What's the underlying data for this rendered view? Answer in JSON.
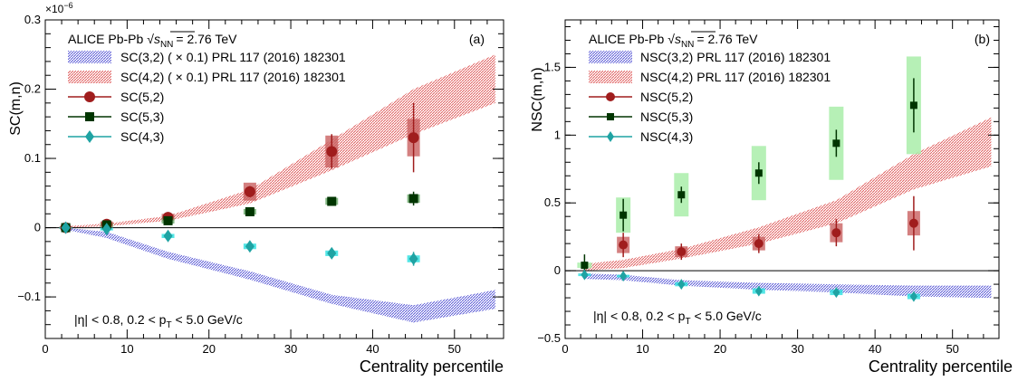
{
  "chart_data": [
    {
      "type": "scatter",
      "panel_label": "(a)",
      "header": "ALICE Pb-Pb",
      "energy_label": "= 2.76 TeV",
      "ylabel": "SC(m,n)",
      "y_multiplier": "×10",
      "y_multiplier_exp": "−6",
      "xlabel": "Centrality percentile",
      "cut_text": "|η| < 0.8, 0.2 < p",
      "cut_text_end": " < 5.0 GeV/c",
      "xlim": [
        0,
        56
      ],
      "ylim": [
        -0.16,
        0.3
      ],
      "xticks": [
        0,
        10,
        20,
        30,
        40,
        50
      ],
      "yticks": [
        -0.1,
        0,
        0.1,
        0.2,
        0.3
      ],
      "ytick_labels": [
        "−0.1",
        "0",
        "0.1",
        "0.2",
        "0.3"
      ],
      "bands": [
        {
          "name": "SC(3,2) ( × 0.1) PRL 117 (2016) 182301",
          "color": "#5b5bd6",
          "x": [
            2.5,
            7.5,
            15,
            25,
            35,
            45,
            55
          ],
          "low": [
            -0.003,
            -0.015,
            -0.045,
            -0.075,
            -0.11,
            -0.137,
            -0.117
          ],
          "high": [
            0.0,
            -0.006,
            -0.035,
            -0.063,
            -0.097,
            -0.112,
            -0.09
          ]
        },
        {
          "name": "SC(4,2) ( × 0.1) PRL 117 (2016) 182301",
          "color": "#e06060",
          "x": [
            2.5,
            7.5,
            15,
            25,
            35,
            45,
            55
          ],
          "low": [
            0.0,
            0.002,
            0.01,
            0.035,
            0.083,
            0.135,
            0.18
          ],
          "high": [
            0.002,
            0.006,
            0.017,
            0.055,
            0.127,
            0.2,
            0.25
          ]
        }
      ],
      "series": [
        {
          "name": "SC(5,2)",
          "marker": "circle",
          "color": "#a01d1d",
          "sys_color": "#c96060",
          "x": [
            2.5,
            7.5,
            15,
            25,
            35,
            45
          ],
          "y": [
            0.0,
            0.005,
            0.015,
            0.052,
            0.11,
            0.13
          ],
          "stat": [
            0.002,
            0.003,
            0.004,
            0.008,
            0.025,
            0.05
          ],
          "sys": [
            0.002,
            0.004,
            0.005,
            0.013,
            0.023,
            0.027
          ]
        },
        {
          "name": "SC(5,3)",
          "marker": "square",
          "color": "#003500",
          "sys_color": "#6aaa6a",
          "x": [
            2.5,
            7.5,
            15,
            25,
            35,
            45
          ],
          "y": [
            0.0,
            0.004,
            0.01,
            0.023,
            0.038,
            0.042
          ],
          "stat": [
            0.001,
            0.002,
            0.003,
            0.004,
            0.006,
            0.01
          ],
          "sys": [
            0.001,
            0.003,
            0.004,
            0.004,
            0.005,
            0.006
          ]
        },
        {
          "name": "SC(4,3)",
          "marker": "diamond",
          "color": "#1fa3a3",
          "sys_color": "#29e0e0",
          "x": [
            2.5,
            7.5,
            15,
            25,
            35,
            45
          ],
          "y": [
            0.0,
            -0.002,
            -0.012,
            -0.027,
            -0.037,
            -0.045
          ],
          "stat": [
            0.001,
            0.002,
            0.003,
            0.005,
            0.006,
            0.01
          ],
          "sys": [
            0.001,
            0.002,
            0.003,
            0.004,
            0.004,
            0.005
          ]
        }
      ]
    },
    {
      "type": "scatter",
      "panel_label": "(b)",
      "header": "ALICE Pb-Pb",
      "energy_label": "= 2.76 TeV",
      "ylabel": "NSC(m,n)",
      "xlabel": "Centrality percentile",
      "cut_text": "|η| < 0.8, 0.2 < p",
      "cut_text_end": " < 5.0 GeV/c",
      "xlim": [
        0,
        56
      ],
      "ylim": [
        -0.5,
        1.85
      ],
      "xticks": [
        0,
        10,
        20,
        30,
        40,
        50
      ],
      "yticks": [
        -0.5,
        0,
        0.5,
        1,
        1.5
      ],
      "ytick_labels": [
        "−0.5",
        "0",
        "0.5",
        "1",
        "1.5"
      ],
      "bands": [
        {
          "name": "NSC(3,2) PRL 117 (2016) 182301",
          "color": "#5b5bd6",
          "x": [
            2.5,
            7.5,
            15,
            25,
            35,
            45,
            55
          ],
          "low": [
            -0.06,
            -0.07,
            -0.11,
            -0.14,
            -0.16,
            -0.19,
            -0.2
          ],
          "high": [
            -0.02,
            -0.03,
            -0.07,
            -0.09,
            -0.1,
            -0.11,
            -0.11
          ]
        },
        {
          "name": "NSC(4,2) PRL 117 (2016) 182301",
          "color": "#e06060",
          "x": [
            2.5,
            7.5,
            15,
            25,
            35,
            45,
            55
          ],
          "low": [
            0.0,
            0.02,
            0.09,
            0.2,
            0.35,
            0.6,
            0.77
          ],
          "high": [
            0.05,
            0.08,
            0.16,
            0.32,
            0.52,
            0.86,
            1.13
          ]
        }
      ],
      "series": [
        {
          "name": "NSC(5,2)",
          "marker": "circle",
          "color": "#a01d1d",
          "sys_color": "#c96060",
          "x": [
            7.5,
            15,
            25,
            35,
            45
          ],
          "y": [
            0.19,
            0.14,
            0.2,
            0.28,
            0.35
          ],
          "stat": [
            0.09,
            0.06,
            0.07,
            0.1,
            0.2
          ],
          "sys": [
            0.06,
            0.04,
            0.05,
            0.07,
            0.09
          ]
        },
        {
          "name": "NSC(5,3)",
          "marker": "square",
          "color": "#003500",
          "sys_color": "#a9eda9",
          "x": [
            2.5,
            7.5,
            15,
            25,
            35,
            45
          ],
          "y": [
            0.04,
            0.41,
            0.56,
            0.72,
            0.94,
            1.22
          ],
          "stat": [
            0.08,
            0.12,
            0.06,
            0.08,
            0.1,
            0.2
          ],
          "sys": [
            0.02,
            0.13,
            0.16,
            0.2,
            0.27,
            0.36
          ]
        },
        {
          "name": "NSC(4,3)",
          "marker": "diamond",
          "color": "#1fa3a3",
          "sys_color": "#29e0e0",
          "x": [
            2.5,
            7.5,
            15,
            25,
            35,
            45
          ],
          "y": [
            -0.03,
            -0.04,
            -0.1,
            -0.15,
            -0.16,
            -0.19
          ],
          "stat": [
            0.01,
            0.01,
            0.02,
            0.02,
            0.02,
            0.03
          ],
          "sys": [
            0.01,
            0.01,
            0.015,
            0.02,
            0.02,
            0.02
          ]
        }
      ]
    }
  ]
}
